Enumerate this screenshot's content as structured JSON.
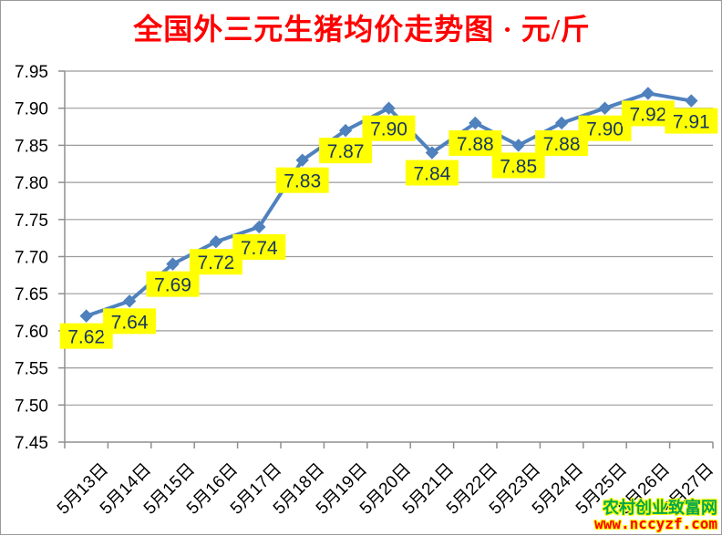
{
  "title": "全国外三元生猪均价走势图 · 元/斤",
  "watermark": {
    "site_name": "农村创业致富网",
    "site_url": "www.nccyzf.com"
  },
  "colors": {
    "title": "#FF0000",
    "line": "#4F81BD",
    "marker": "#4F81BD",
    "gridline": "#9C9C9C",
    "axis": "#8F8F8F",
    "label_bg": "#FFFF00",
    "label_text": "#17375E",
    "axis_text": "#000000",
    "watermark_name": "#00A651",
    "watermark_url": "#FF0000"
  },
  "chart_data": {
    "type": "line",
    "title": "全国外三元生猪均价走势图 · 元/斤",
    "categories": [
      "5月13日",
      "5月14日",
      "5月15日",
      "5月16日",
      "5月17日",
      "5月18日",
      "5月19日",
      "5月20日",
      "5月21日",
      "5月22日",
      "5月23日",
      "5月24日",
      "5月25日",
      "5月26日",
      "5月27日"
    ],
    "values": [
      7.62,
      7.64,
      7.69,
      7.72,
      7.74,
      7.83,
      7.87,
      7.9,
      7.84,
      7.88,
      7.85,
      7.88,
      7.9,
      7.92,
      7.91
    ],
    "data_labels": [
      "7.62",
      "7.64",
      "7.69",
      "7.72",
      "7.74",
      "7.83",
      "7.87",
      "7.90",
      "7.84",
      "7.88",
      "7.85",
      "7.88",
      "7.90",
      "7.92",
      "7.91"
    ],
    "xlabel": "",
    "ylabel": "",
    "ylim": [
      7.45,
      7.95
    ],
    "ytick_step": 0.05,
    "yticks": [
      "7.45",
      "7.50",
      "7.55",
      "7.60",
      "7.65",
      "7.70",
      "7.75",
      "7.80",
      "7.85",
      "7.90",
      "7.95"
    ],
    "grid": "horizontal",
    "legend": "none",
    "marker": "diamond"
  }
}
